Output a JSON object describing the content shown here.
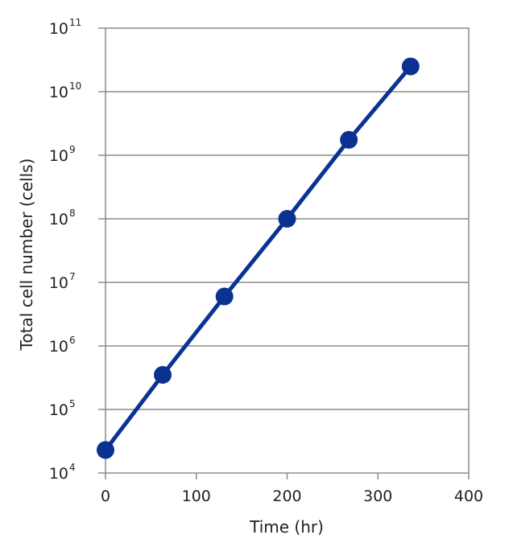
{
  "chart_data": {
    "type": "line",
    "title": "",
    "xlabel": "Time (hr)",
    "ylabel": "Total cell number (cells)",
    "xlim": [
      0,
      400
    ],
    "ylim": [
      10000,
      100000000000
    ],
    "yscale": "log",
    "x_ticks": [
      "0",
      "100",
      "200",
      "300",
      "400"
    ],
    "y_ticks": [
      {
        "base": "10",
        "exp": "4"
      },
      {
        "base": "10",
        "exp": "5"
      },
      {
        "base": "10",
        "exp": "6"
      },
      {
        "base": "10",
        "exp": "7"
      },
      {
        "base": "10",
        "exp": "8"
      },
      {
        "base": "10",
        "exp": "9"
      },
      {
        "base": "10",
        "exp": "10"
      },
      {
        "base": "10",
        "exp": "11"
      }
    ],
    "grid": "horizontal",
    "series": [
      {
        "color": "#0a3291",
        "x": [
          0,
          63,
          131,
          200,
          268,
          336
        ],
        "y": [
          23000,
          350000,
          6000000,
          100000000,
          1750000000,
          25000000000
        ]
      }
    ]
  }
}
